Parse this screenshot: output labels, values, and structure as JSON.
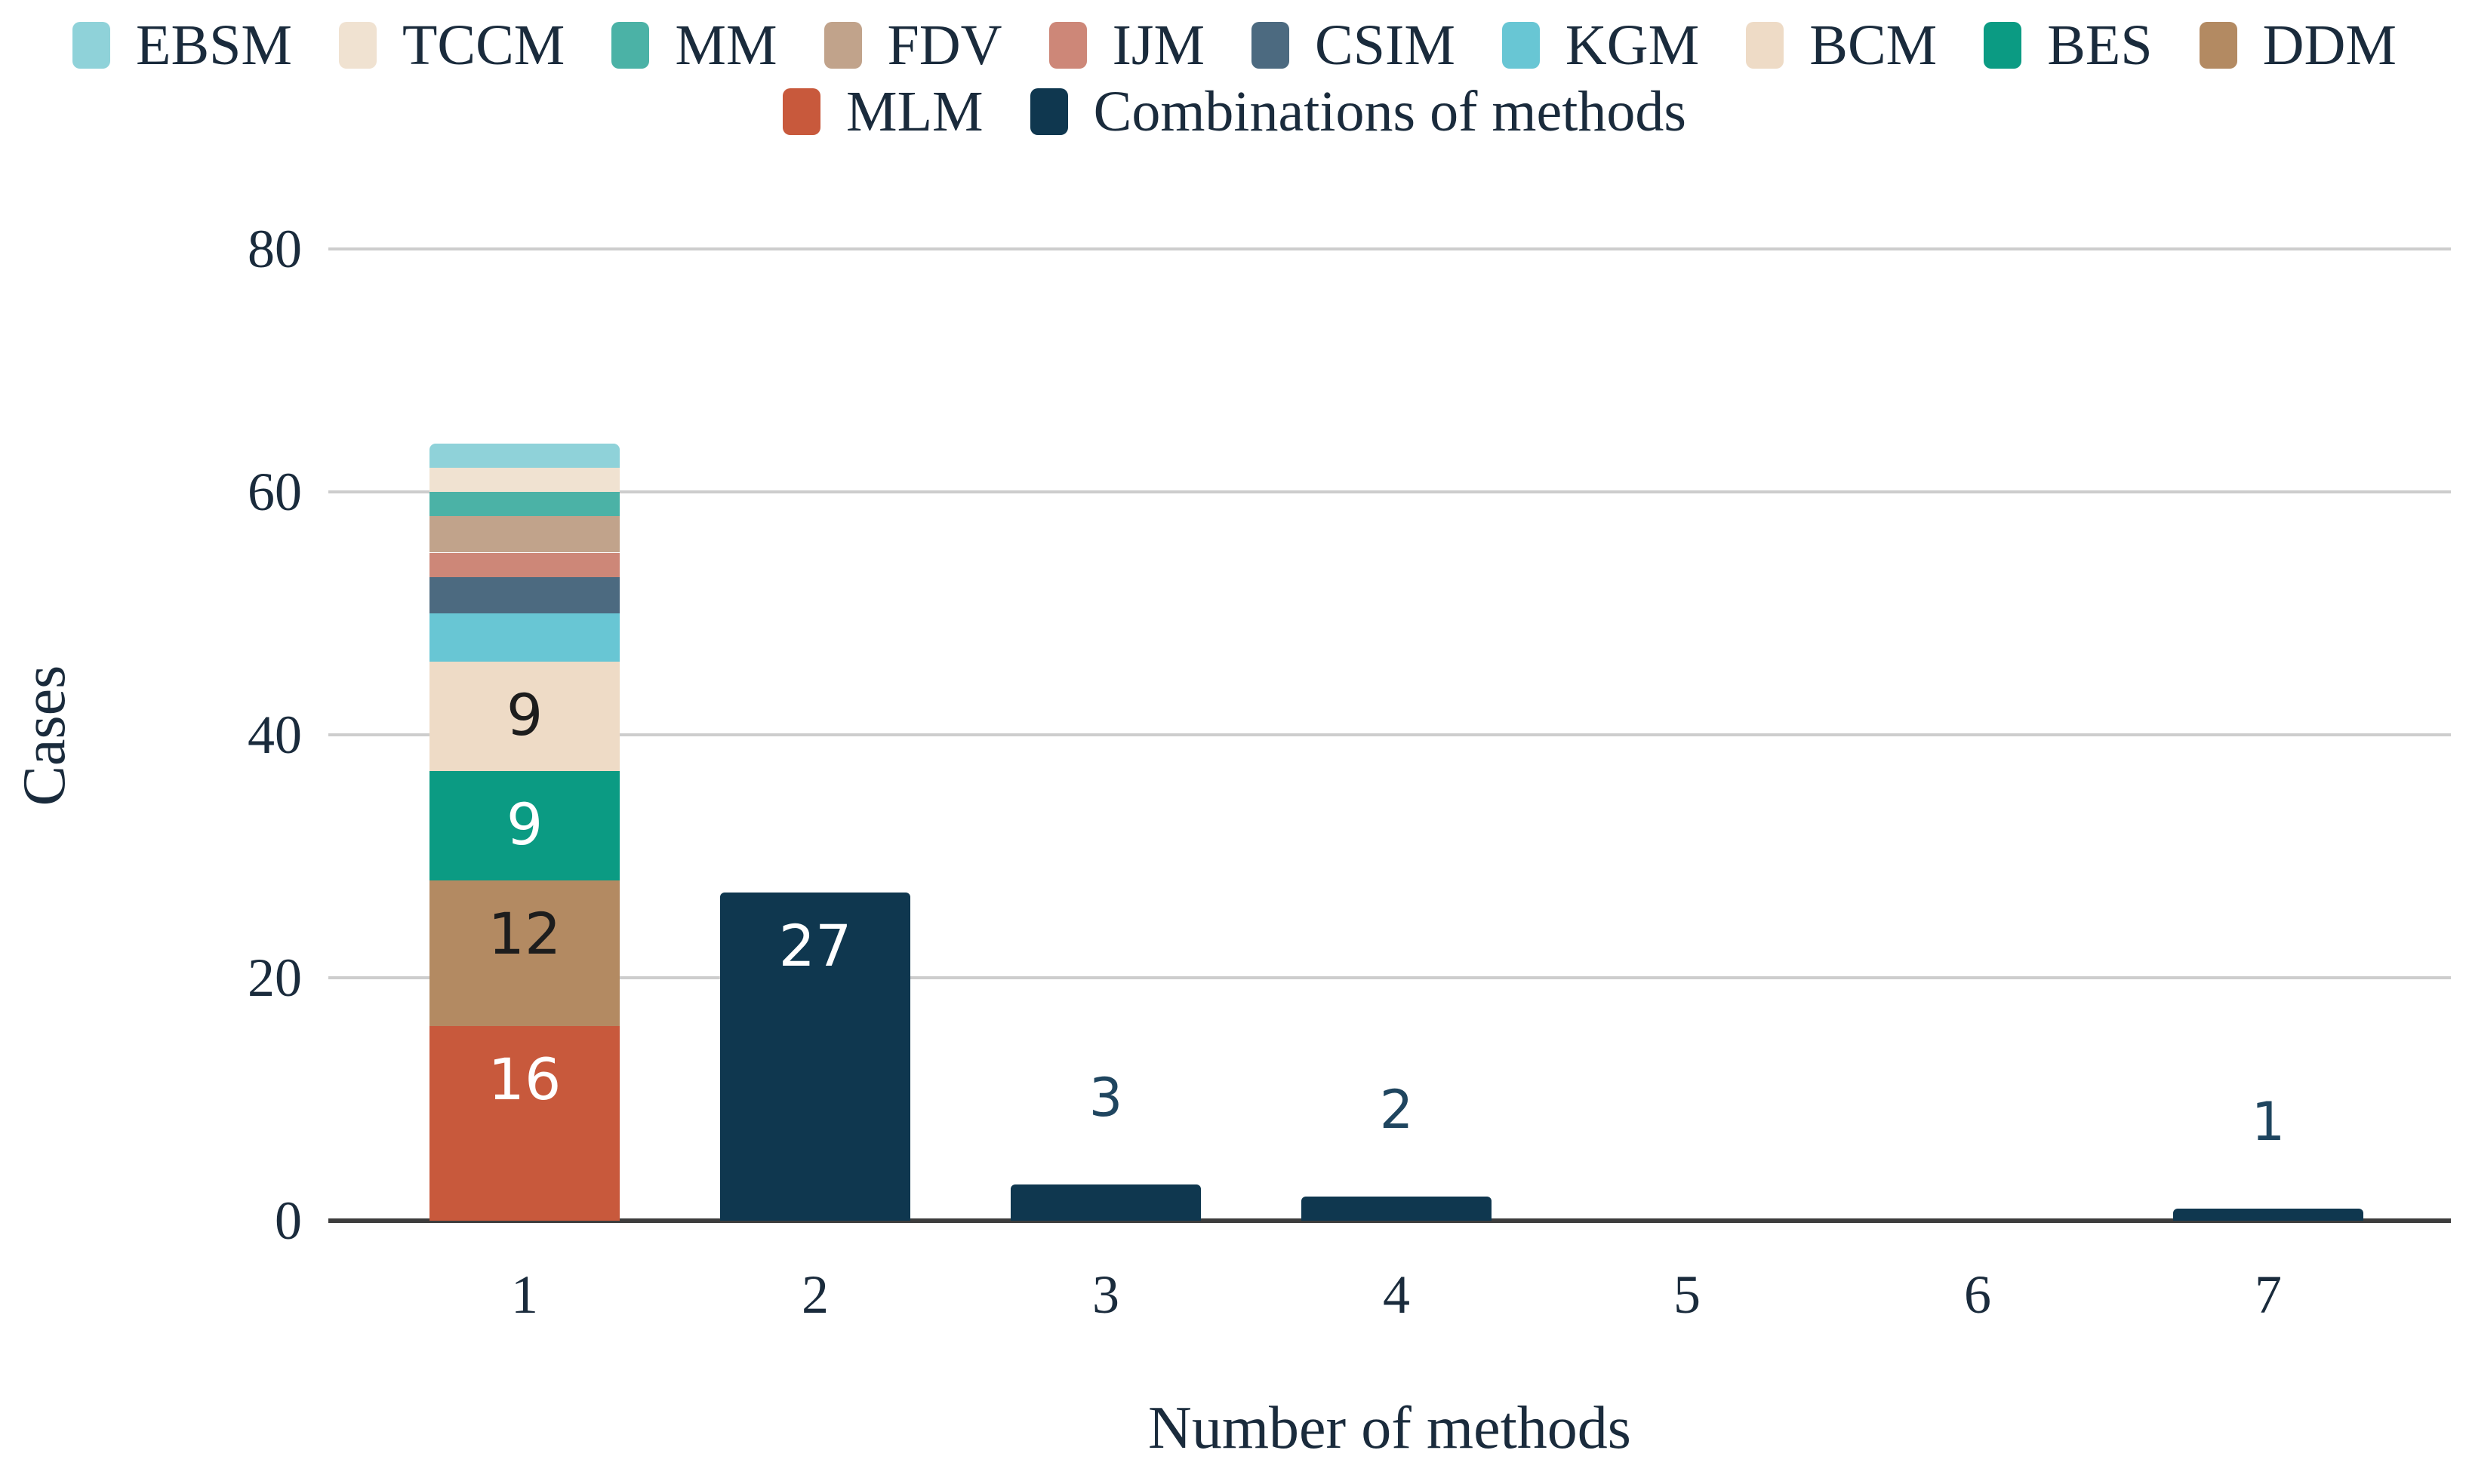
{
  "legend": {
    "rows": [
      [
        {
          "label": "EBSM",
          "color": "#8fd2d9"
        },
        {
          "label": "TCCM",
          "color": "#f0e2d1"
        },
        {
          "label": "MM",
          "color": "#4bb2a6"
        },
        {
          "label": "FDV",
          "color": "#c1a38b"
        },
        {
          "label": "IJM",
          "color": "#cd8778"
        },
        {
          "label": "CSIM",
          "color": "#4c6a80"
        },
        {
          "label": "KGM",
          "color": "#68c6d4"
        },
        {
          "label": "BCM",
          "color": "#eedbc6"
        },
        {
          "label": "BES",
          "color": "#0b9b83"
        },
        {
          "label": "DDM",
          "color": "#b38a62"
        }
      ],
      [
        {
          "label": "MLM",
          "color": "#c8593c"
        },
        {
          "label": "Combinations of methods",
          "color": "#0f374f"
        }
      ]
    ]
  },
  "axes": {
    "y_label": "Cases",
    "x_label": "Number of methods",
    "y_ticks": [
      "0",
      "20",
      "40",
      "60",
      "80"
    ],
    "x_ticks": [
      "1",
      "2",
      "3",
      "4",
      "5",
      "6",
      "7"
    ]
  },
  "chart_data": {
    "type": "bar",
    "stacked": true,
    "title": "",
    "xlabel": "Number of methods",
    "ylabel": "Cases",
    "ylim": [
      0,
      80
    ],
    "y_tick_values": [
      0,
      20,
      40,
      60,
      80
    ],
    "grid": "horizontal",
    "legend_position": "top",
    "categories": [
      "1",
      "2",
      "3",
      "4",
      "5",
      "6",
      "7"
    ],
    "stacked_bar": {
      "category": "1",
      "total": 64,
      "segments_bottom_to_top": [
        {
          "name": "MLM",
          "value": 16,
          "color": "#c8593c",
          "label": "16",
          "label_style": "light"
        },
        {
          "name": "DDM",
          "value": 12,
          "color": "#b38a62",
          "label": "12",
          "label_style": "dark"
        },
        {
          "name": "BES",
          "value": 9,
          "color": "#0b9b83",
          "label": "9",
          "label_style": "light"
        },
        {
          "name": "BCM",
          "value": 9,
          "color": "#eedbc6",
          "label": "9",
          "label_style": "dark"
        },
        {
          "name": "KGM",
          "value": 4,
          "color": "#68c6d4"
        },
        {
          "name": "CSIM",
          "value": 3,
          "color": "#4c6a80"
        },
        {
          "name": "IJM",
          "value": 2,
          "color": "#cd8778"
        },
        {
          "name": "FDV",
          "value": 3,
          "color": "#c1a38b"
        },
        {
          "name": "MM",
          "value": 2,
          "color": "#4bb2a6"
        },
        {
          "name": "TCCM",
          "value": 2,
          "color": "#f0e2d1"
        },
        {
          "name": "EBSM",
          "value": 2,
          "color": "#8fd2d9"
        }
      ]
    },
    "combination_bars": [
      {
        "category": "2",
        "value": 27,
        "color": "#0f374f",
        "label": "27",
        "label_position": "inside",
        "label_style": "light"
      },
      {
        "category": "3",
        "value": 3,
        "color": "#0f374f",
        "label": "3",
        "label_position": "above"
      },
      {
        "category": "4",
        "value": 2,
        "color": "#0f374f",
        "label": "2",
        "label_position": "above"
      },
      {
        "category": "5",
        "value": 0,
        "color": "#0f374f"
      },
      {
        "category": "6",
        "value": 0,
        "color": "#0f374f"
      },
      {
        "category": "7",
        "value": 1,
        "color": "#0f374f",
        "label": "1",
        "label_position": "above"
      }
    ],
    "colors": {
      "label_dark": "#1d1d1d",
      "label_light": "#ffffff",
      "label_outside": "#1f455f",
      "gridline": "#cdcdcd",
      "axis_line": "#3d3d3d",
      "text": "#1a2b3c"
    }
  }
}
